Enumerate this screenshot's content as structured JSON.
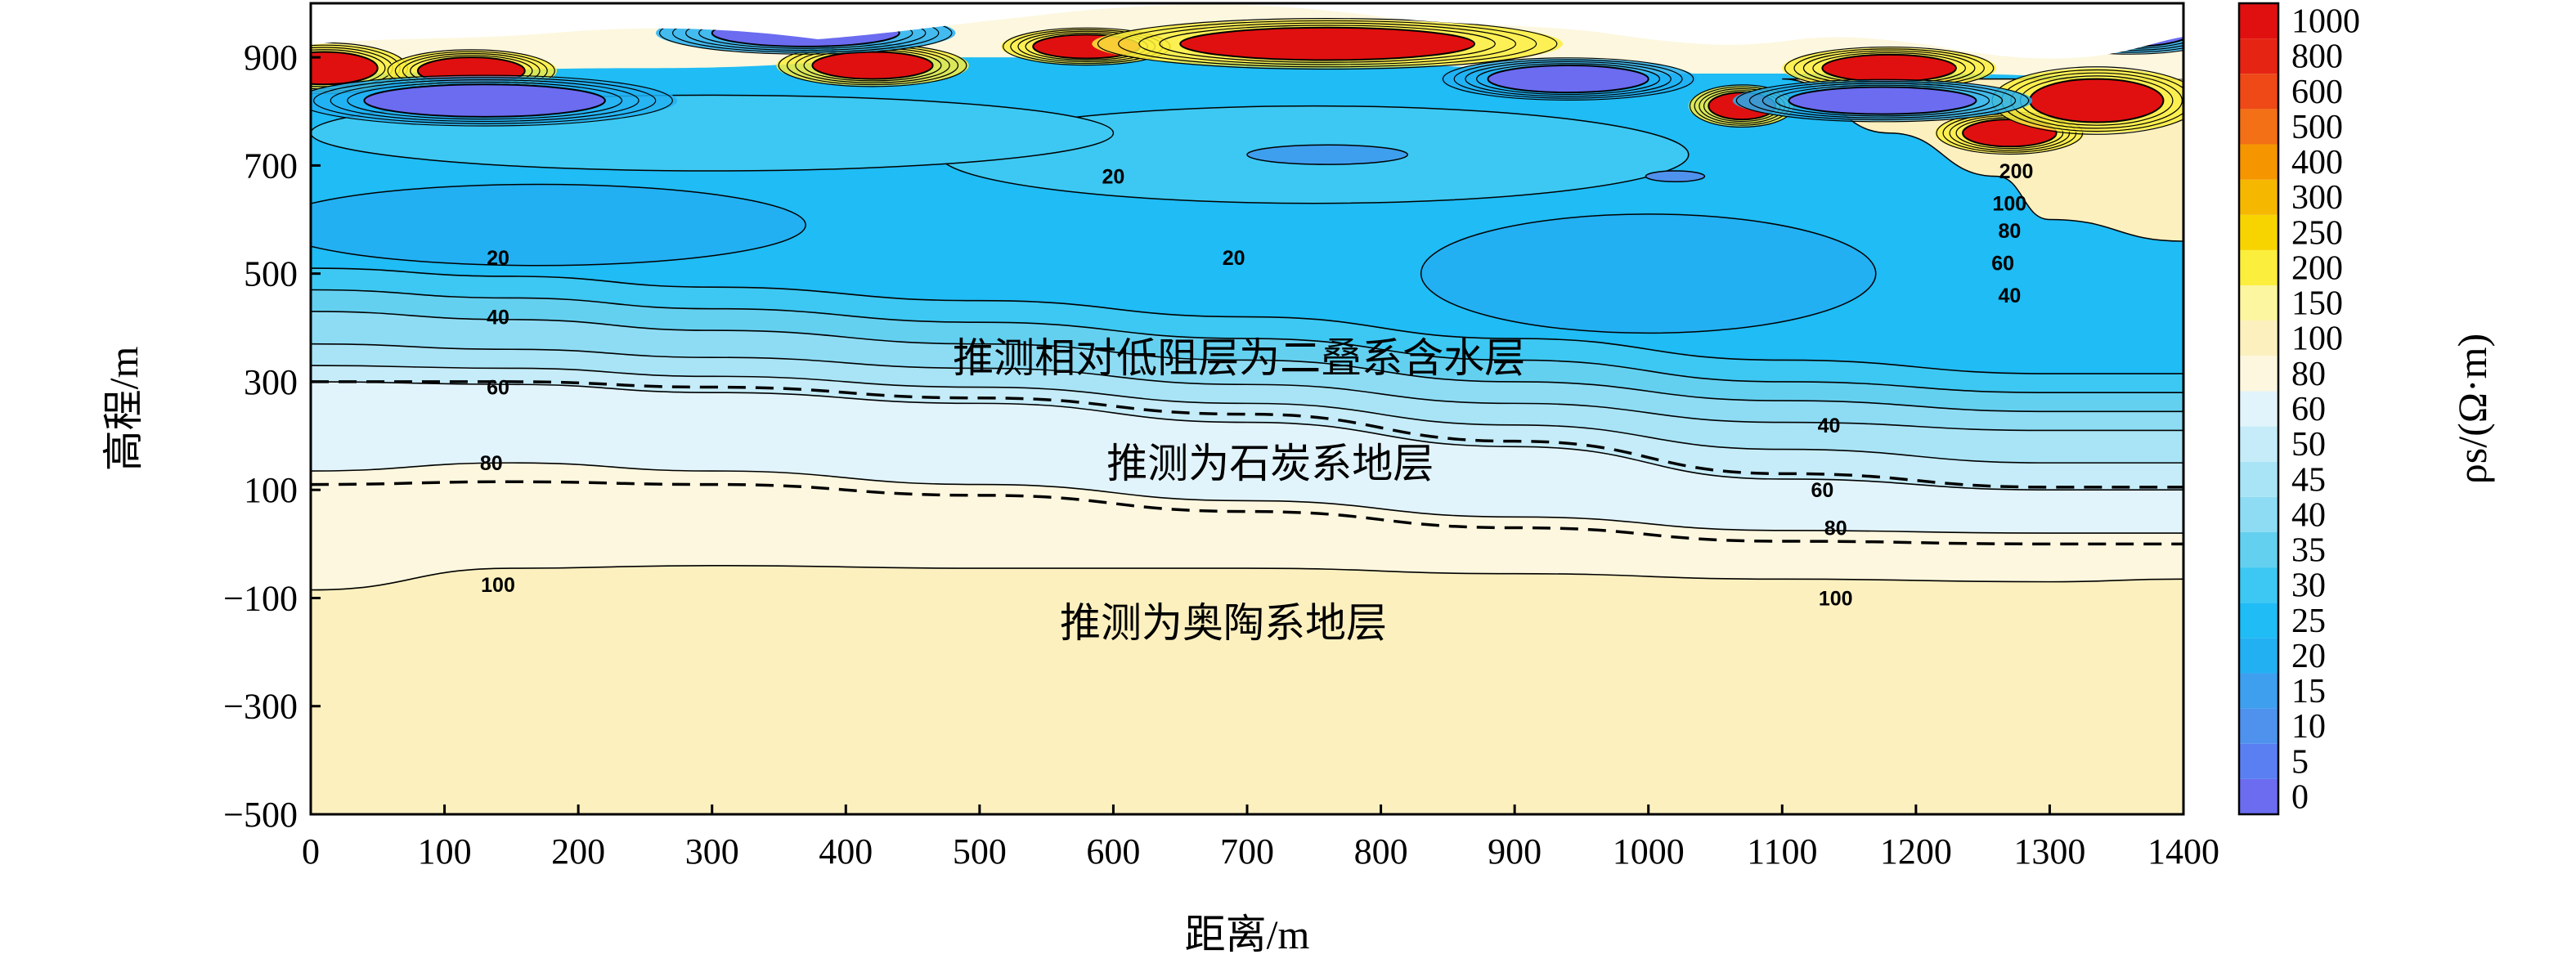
{
  "chart_data": {
    "type": "heatmap",
    "title": "",
    "xlabel": "距离/m",
    "ylabel": "高程/m",
    "xlim": [
      0,
      1400
    ],
    "ylim": [
      -500,
      1000
    ],
    "x_ticks": [
      "0",
      "100",
      "200",
      "300",
      "400",
      "500",
      "600",
      "700",
      "800",
      "900",
      "1000",
      "1100",
      "1200",
      "1300",
      "1400"
    ],
    "y_ticks": [
      "−500",
      "−300",
      "−100",
      "100",
      "300",
      "500",
      "700",
      "900"
    ],
    "y_tick_values": [
      -500,
      -300,
      -100,
      100,
      300,
      500,
      700,
      900
    ],
    "colorbar": {
      "label": "ρs/(Ω·m)",
      "levels": [
        "0",
        "5",
        "10",
        "15",
        "20",
        "25",
        "30",
        "35",
        "40",
        "45",
        "50",
        "60",
        "80",
        "100",
        "150",
        "200",
        "250",
        "300",
        "400",
        "500",
        "600",
        "800",
        "1000"
      ],
      "colors": [
        "#6b6cf0",
        "#5a7ff2",
        "#4f92ee",
        "#3e9fef",
        "#22b0f2",
        "#1fbcf5",
        "#3cc8f2",
        "#64d0f0",
        "#8edcf4",
        "#a9e4f6",
        "#c5ecf8",
        "#e2f4fb",
        "#fcf7de",
        "#fcf0bf",
        "#fcf6a0",
        "#fbee3c",
        "#f7d400",
        "#f5b700",
        "#f59600",
        "#f37016",
        "#ee4916",
        "#e62414",
        "#e01010"
      ]
    },
    "annotations": [
      {
        "text": "推测相对低阻层为二叠系含水层",
        "x": 480,
        "y": 345
      },
      {
        "text": "推测为石炭系地层",
        "x": 595,
        "y": 150
      },
      {
        "text": "推测为奥陶系地层",
        "x": 560,
        "y": -145
      }
    ],
    "contour_labels": [
      {
        "text": "20",
        "x": 600,
        "y": 680
      },
      {
        "text": "20",
        "x": 690,
        "y": 530
      },
      {
        "text": "20",
        "x": 140,
        "y": 530
      },
      {
        "text": "40",
        "x": 140,
        "y": 420
      },
      {
        "text": "40",
        "x": 1270,
        "y": 460
      },
      {
        "text": "40",
        "x": 1135,
        "y": 220
      },
      {
        "text": "60",
        "x": 140,
        "y": 290
      },
      {
        "text": "60",
        "x": 1265,
        "y": 520
      },
      {
        "text": "60",
        "x": 1130,
        "y": 100
      },
      {
        "text": "80",
        "x": 135,
        "y": 150
      },
      {
        "text": "80",
        "x": 1270,
        "y": 580
      },
      {
        "text": "80",
        "x": 1140,
        "y": 30
      },
      {
        "text": "100",
        "x": 140,
        "y": -75
      },
      {
        "text": "100",
        "x": 1270,
        "y": 630
      },
      {
        "text": "100",
        "x": 1140,
        "y": -100
      },
      {
        "text": "200",
        "x": 1275,
        "y": 690
      }
    ],
    "dashed_boundaries": [
      {
        "x": [
          0,
          150,
          300,
          500,
          700,
          900,
          1100,
          1300,
          1400
        ],
        "y": [
          300,
          300,
          290,
          270,
          240,
          190,
          130,
          105,
          105
        ]
      },
      {
        "x": [
          0,
          150,
          300,
          500,
          700,
          900,
          1100,
          1300,
          1400
        ],
        "y": [
          110,
          115,
          110,
          90,
          60,
          30,
          5,
          0,
          0
        ]
      }
    ],
    "contour_lines": [
      {
        "level": 100,
        "x": [
          0,
          150,
          300,
          500,
          700,
          900,
          1100,
          1300,
          1400
        ],
        "y": [
          -85,
          -45,
          -40,
          -45,
          -45,
          -55,
          -65,
          -70,
          -65
        ]
      },
      {
        "level": 80,
        "x": [
          0,
          150,
          300,
          500,
          700,
          900,
          1100,
          1300,
          1400
        ],
        "y": [
          135,
          150,
          135,
          110,
          80,
          50,
          25,
          20,
          20
        ]
      },
      {
        "level": 60,
        "x": [
          0,
          150,
          300,
          500,
          700,
          900,
          1100,
          1300,
          1400
        ],
        "y": [
          300,
          295,
          280,
          260,
          225,
          180,
          120,
          100,
          100
        ]
      },
      {
        "level": 50,
        "x": [
          0,
          150,
          300,
          500,
          700,
          900,
          1100,
          1300,
          1400
        ],
        "y": [
          330,
          325,
          310,
          290,
          260,
          220,
          175,
          150,
          150
        ]
      },
      {
        "level": 45,
        "x": [
          0,
          150,
          300,
          500,
          700,
          900,
          1100,
          1300,
          1400
        ],
        "y": [
          370,
          360,
          345,
          325,
          295,
          260,
          225,
          210,
          210
        ]
      },
      {
        "level": 40,
        "x": [
          0,
          150,
          300,
          500,
          700,
          900,
          1100,
          1300,
          1400
        ],
        "y": [
          430,
          415,
          395,
          370,
          340,
          300,
          265,
          245,
          245
        ]
      },
      {
        "level": 35,
        "x": [
          0,
          150,
          300,
          500,
          700,
          900,
          1100,
          1300,
          1400
        ],
        "y": [
          470,
          455,
          435,
          410,
          380,
          340,
          300,
          280,
          280
        ]
      },
      {
        "level": 30,
        "x": [
          0,
          150,
          300,
          500,
          700,
          900,
          1100,
          1300,
          1400
        ],
        "y": [
          510,
          495,
          475,
          450,
          420,
          380,
          340,
          315,
          315
        ]
      }
    ],
    "anomalies": [
      {
        "x": 10,
        "y": 880,
        "rx": 40,
        "ry": 30,
        "level": "1000"
      },
      {
        "x": 120,
        "y": 875,
        "rx": 40,
        "ry": 25,
        "level": "1000"
      },
      {
        "x": 420,
        "y": 885,
        "rx": 45,
        "ry": 25,
        "level": "1000"
      },
      {
        "x": 580,
        "y": 920,
        "rx": 40,
        "ry": 22,
        "level": "1000"
      },
      {
        "x": 760,
        "y": 925,
        "rx": 110,
        "ry": 30,
        "level": "1000"
      },
      {
        "x": 1070,
        "y": 810,
        "rx": 25,
        "ry": 25,
        "level": "1000"
      },
      {
        "x": 1180,
        "y": 880,
        "rx": 50,
        "ry": 25,
        "level": "1000"
      },
      {
        "x": 1270,
        "y": 760,
        "rx": 35,
        "ry": 25,
        "level": "1000"
      },
      {
        "x": 1335,
        "y": 820,
        "rx": 50,
        "ry": 40,
        "level": "1000"
      },
      {
        "x": 130,
        "y": 820,
        "rx": 90,
        "ry": 30,
        "level": "0"
      },
      {
        "x": 370,
        "y": 945,
        "rx": 70,
        "ry": 25,
        "level": "0"
      },
      {
        "x": 940,
        "y": 860,
        "rx": 60,
        "ry": 25,
        "level": "0"
      },
      {
        "x": 1175,
        "y": 820,
        "rx": 70,
        "ry": 25,
        "level": "0"
      },
      {
        "x": 1360,
        "y": 945,
        "rx": 45,
        "ry": 25,
        "level": "0"
      }
    ]
  }
}
